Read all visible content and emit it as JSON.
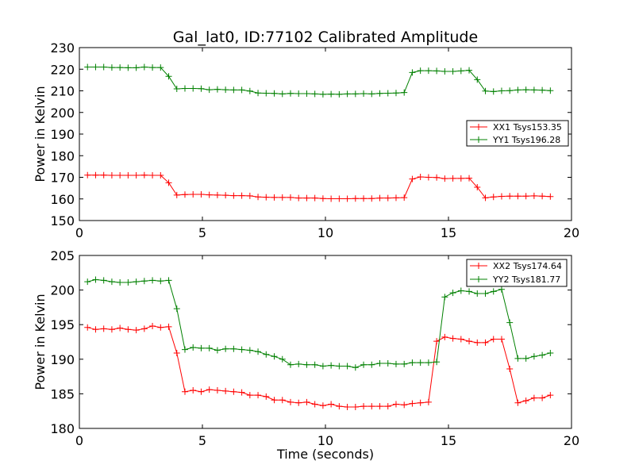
{
  "chart_data": [
    {
      "type": "line",
      "title": "Gal_lat0, ID:77102 Calibrated Amplitude",
      "xlabel": "",
      "ylabel": "Power in Kelvin",
      "xlim": [
        0,
        20
      ],
      "ylim": [
        150,
        230
      ],
      "xticks": [
        "0",
        "5",
        "10",
        "15",
        "20"
      ],
      "yticks": [
        "150",
        "160",
        "170",
        "180",
        "190",
        "200",
        "210",
        "220",
        "230"
      ],
      "legend_position": "center-right",
      "x": [
        0.33,
        0.66,
        0.99,
        1.32,
        1.65,
        1.98,
        2.31,
        2.64,
        2.97,
        3.3,
        3.63,
        3.96,
        4.29,
        4.62,
        4.95,
        5.28,
        5.61,
        5.94,
        6.27,
        6.6,
        6.93,
        7.26,
        7.59,
        7.92,
        8.25,
        8.58,
        8.91,
        9.24,
        9.57,
        9.9,
        10.23,
        10.56,
        10.89,
        11.22,
        11.55,
        11.88,
        12.21,
        12.54,
        12.87,
        13.2,
        13.53,
        13.86,
        14.19,
        14.52,
        14.85,
        15.18,
        15.51,
        15.84,
        16.17,
        16.5,
        16.83,
        17.16,
        17.49,
        17.82,
        18.15,
        18.48,
        18.81,
        19.14
      ],
      "series": [
        {
          "name": "XX1 Tsys153.35",
          "color": "#ff0000",
          "values": [
            171.0,
            171.0,
            171.0,
            170.9,
            170.9,
            170.9,
            170.9,
            171.0,
            170.9,
            170.9,
            167.5,
            161.8,
            162.0,
            162.1,
            162.1,
            161.9,
            161.8,
            161.7,
            161.5,
            161.5,
            161.4,
            160.9,
            160.8,
            160.7,
            160.7,
            160.7,
            160.4,
            160.4,
            160.4,
            160.2,
            160.1,
            160.1,
            160.1,
            160.2,
            160.2,
            160.2,
            160.4,
            160.4,
            160.5,
            160.6,
            169.2,
            170.2,
            170.0,
            169.9,
            169.4,
            169.5,
            169.5,
            169.6,
            165.4,
            160.5,
            160.9,
            161.2,
            161.3,
            161.3,
            161.3,
            161.4,
            161.3,
            161.1
          ]
        },
        {
          "name": "YY1 Tsys196.28",
          "color": "#008000",
          "values": [
            221.0,
            221.0,
            221.0,
            220.8,
            220.8,
            220.7,
            220.7,
            221.0,
            220.8,
            220.8,
            216.7,
            210.9,
            211.1,
            211.1,
            211.0,
            210.5,
            210.7,
            210.5,
            210.4,
            210.4,
            209.9,
            209.0,
            208.9,
            208.8,
            208.6,
            208.8,
            208.7,
            208.7,
            208.6,
            208.4,
            208.5,
            208.4,
            208.6,
            208.6,
            208.7,
            208.6,
            208.8,
            208.9,
            209.0,
            209.2,
            218.5,
            219.3,
            219.3,
            219.2,
            219.0,
            219.0,
            219.2,
            219.5,
            215.2,
            209.9,
            209.7,
            210.0,
            210.1,
            210.4,
            210.5,
            210.4,
            210.3,
            210.1
          ]
        }
      ]
    },
    {
      "type": "line",
      "title": "",
      "xlabel": "Time (seconds)",
      "ylabel": "Power in Kelvin",
      "xlim": [
        0,
        20
      ],
      "ylim": [
        180,
        205
      ],
      "xticks": [
        "0",
        "5",
        "10",
        "15",
        "20"
      ],
      "yticks": [
        "180",
        "185",
        "190",
        "195",
        "200",
        "205"
      ],
      "legend_position": "top-right",
      "x": [
        0.33,
        0.66,
        0.99,
        1.32,
        1.65,
        1.98,
        2.31,
        2.64,
        2.97,
        3.3,
        3.63,
        3.96,
        4.29,
        4.62,
        4.95,
        5.28,
        5.61,
        5.94,
        6.27,
        6.6,
        6.93,
        7.26,
        7.59,
        7.92,
        8.25,
        8.58,
        8.91,
        9.24,
        9.57,
        9.9,
        10.23,
        10.56,
        10.89,
        11.22,
        11.55,
        11.88,
        12.21,
        12.54,
        12.87,
        13.2,
        13.53,
        13.86,
        14.19,
        14.52,
        14.85,
        15.18,
        15.51,
        15.84,
        16.17,
        16.5,
        16.83,
        17.16,
        17.49,
        17.82,
        18.15,
        18.48,
        18.81,
        19.14
      ],
      "series": [
        {
          "name": "XX2 Tsys174.64",
          "color": "#ff0000",
          "values": [
            194.6,
            194.3,
            194.4,
            194.3,
            194.5,
            194.3,
            194.2,
            194.4,
            194.8,
            194.6,
            194.7,
            190.9,
            185.3,
            185.5,
            185.3,
            185.6,
            185.5,
            185.4,
            185.3,
            185.2,
            184.8,
            184.8,
            184.6,
            184.1,
            184.1,
            183.8,
            183.7,
            183.8,
            183.5,
            183.3,
            183.5,
            183.2,
            183.1,
            183.1,
            183.2,
            183.2,
            183.2,
            183.2,
            183.5,
            183.4,
            183.6,
            183.7,
            183.8,
            192.6,
            193.2,
            193.0,
            192.9,
            192.6,
            192.4,
            192.4,
            192.9,
            192.9,
            188.6,
            183.7,
            184.0,
            184.4,
            184.4,
            184.8
          ]
        },
        {
          "name": "YY2 Tsys181.77",
          "color": "#008000",
          "values": [
            201.2,
            201.5,
            201.4,
            201.2,
            201.1,
            201.1,
            201.2,
            201.3,
            201.4,
            201.3,
            201.4,
            197.3,
            191.4,
            191.7,
            191.6,
            191.6,
            191.3,
            191.5,
            191.5,
            191.4,
            191.3,
            191.1,
            190.7,
            190.4,
            190.0,
            189.2,
            189.3,
            189.2,
            189.2,
            189.0,
            189.1,
            189.0,
            189.0,
            188.8,
            189.2,
            189.2,
            189.4,
            189.4,
            189.3,
            189.3,
            189.5,
            189.5,
            189.5,
            189.6,
            199.0,
            199.6,
            199.9,
            199.8,
            199.5,
            199.5,
            199.8,
            200.1,
            195.3,
            190.1,
            190.1,
            190.4,
            190.6,
            190.9
          ]
        }
      ]
    }
  ]
}
